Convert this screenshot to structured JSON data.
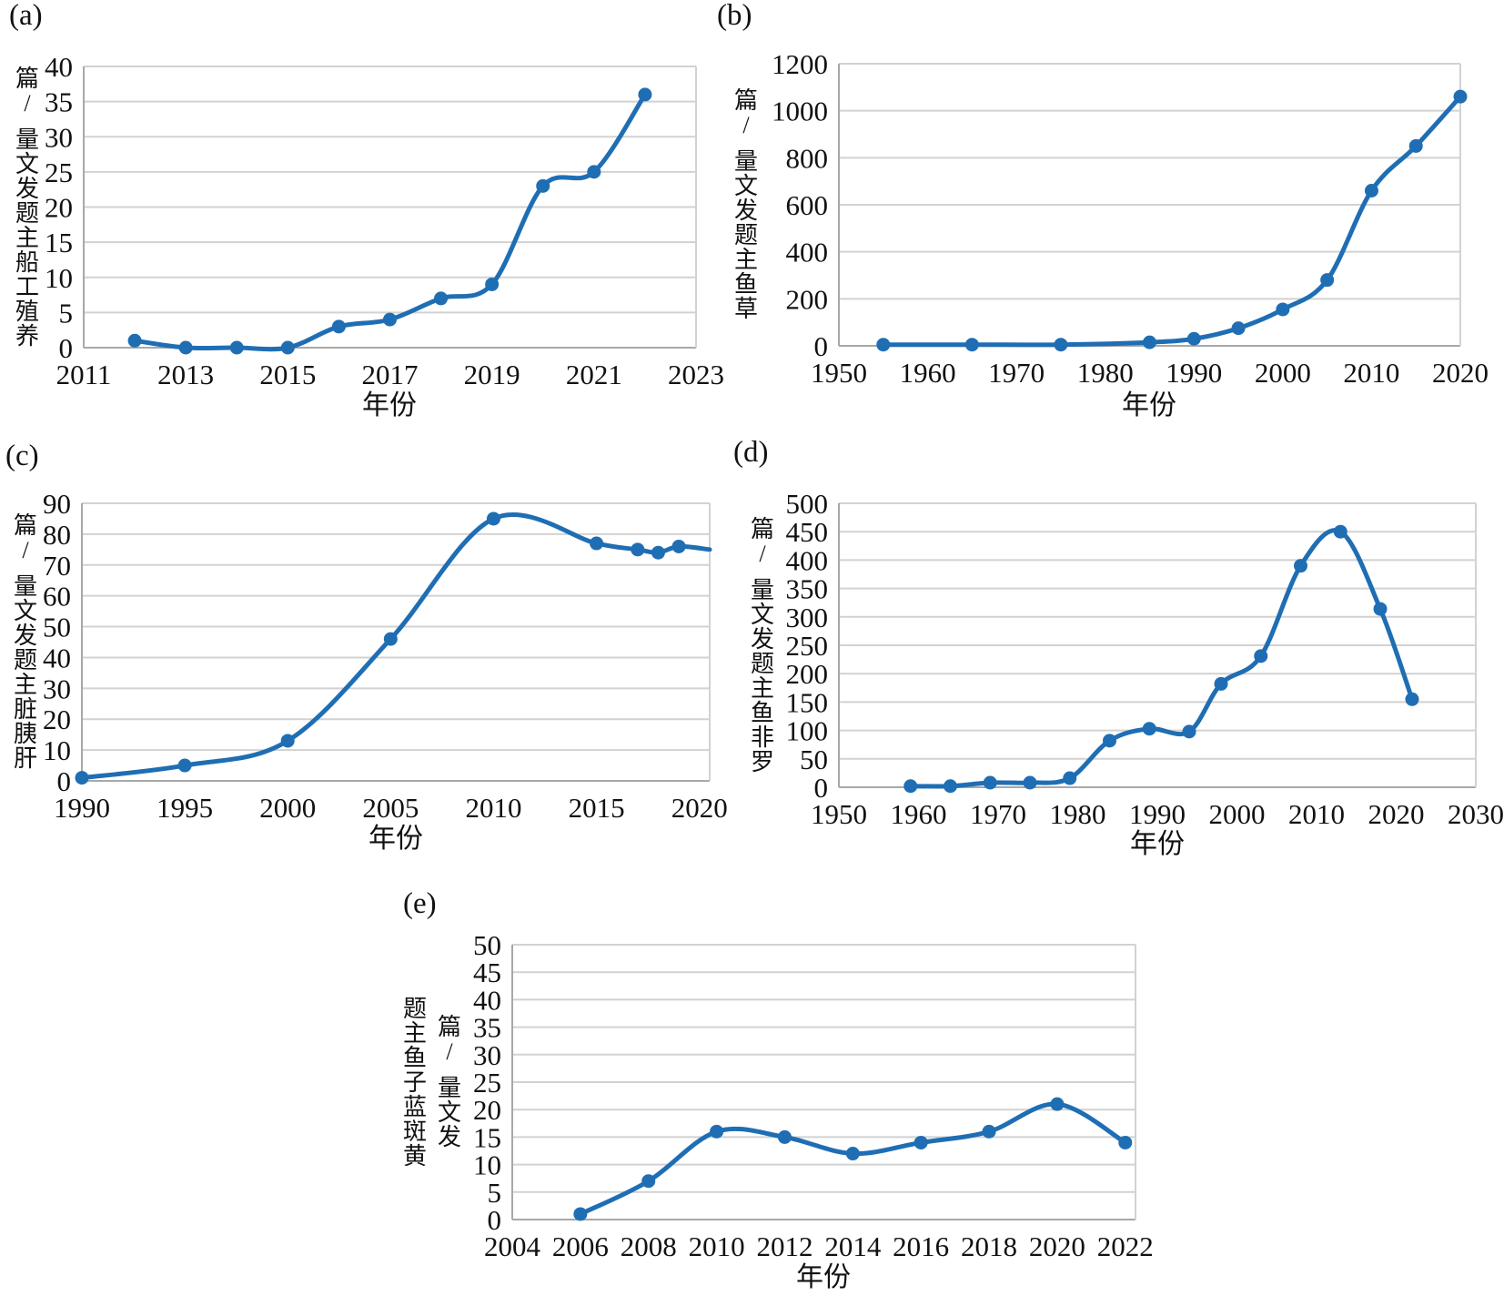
{
  "figure": {
    "xlabel": "年份",
    "colors": {
      "line": "#1f6eb4",
      "grid": "#d2d2d2",
      "axis": "#a8a8a8",
      "text": "#111111"
    }
  },
  "chart_data": [
    {
      "type": "line",
      "panel_label": "(a)",
      "title": "",
      "ylabel": "养殖工船主题发文量 /篇",
      "ylabel_lines": [
        "养殖工船主题发文量 /篇"
      ],
      "xlabel": "年份",
      "x_range": [
        2011,
        2023
      ],
      "y_range": [
        0,
        40
      ],
      "x_ticks": [
        2011,
        2013,
        2015,
        2017,
        2019,
        2021,
        2023
      ],
      "y_ticks": [
        0,
        5,
        10,
        15,
        20,
        25,
        30,
        35,
        40
      ],
      "grid": true,
      "legend": "none",
      "x": [
        2012,
        2013,
        2014,
        2015,
        2016,
        2017,
        2018,
        2019,
        2020,
        2021,
        2022
      ],
      "y": [
        1,
        0,
        0,
        0,
        3,
        4,
        7,
        9,
        23,
        25,
        36
      ]
    },
    {
      "type": "line",
      "panel_label": "(b)",
      "title": "",
      "ylabel": "草鱼主题发文量 /篇",
      "ylabel_lines": [
        "草鱼主题发文量 /篇"
      ],
      "xlabel": "年份",
      "x_range": [
        1950,
        2020
      ],
      "y_range": [
        0,
        1200
      ],
      "x_ticks": [
        1950,
        1960,
        1970,
        1980,
        1990,
        2000,
        2010,
        2020
      ],
      "y_ticks": [
        0,
        200,
        400,
        600,
        800,
        1000,
        1200
      ],
      "grid": true,
      "legend": "none",
      "x": [
        1955,
        1965,
        1975,
        1985,
        1990,
        1995,
        2000,
        2005,
        2010,
        2015,
        2020
      ],
      "y": [
        5,
        5,
        5,
        15,
        30,
        75,
        155,
        280,
        660,
        850,
        1060
      ]
    },
    {
      "type": "line",
      "panel_label": "(c)",
      "title": "",
      "ylabel": "肝胰脏主题发文量 /篇",
      "ylabel_lines": [
        "肝胰脏主题发文量 /篇"
      ],
      "xlabel": "年份",
      "x_range": [
        1990,
        2020.5
      ],
      "y_range": [
        0,
        90
      ],
      "x_ticks": [
        1990,
        1995,
        2000,
        2005,
        2010,
        2015,
        2020
      ],
      "y_ticks": [
        0,
        10,
        20,
        30,
        40,
        50,
        60,
        70,
        80,
        90
      ],
      "grid": true,
      "legend": "none",
      "x": [
        1990,
        1995,
        2000,
        2005,
        2010,
        2015,
        2017,
        2018,
        2019
      ],
      "y": [
        1,
        5,
        13,
        46,
        85,
        77,
        75,
        74,
        76
      ],
      "line_extra": [
        [
          2020.5,
          75
        ]
      ]
    },
    {
      "type": "line",
      "panel_label": "(d)",
      "title": "",
      "ylabel": "罗非鱼主题发文量 /篇",
      "ylabel_lines": [
        "罗非鱼主题发文量 /篇"
      ],
      "xlabel": "年份",
      "x_range": [
        1950,
        2030
      ],
      "y_range": [
        0,
        500
      ],
      "x_ticks": [
        1950,
        1960,
        1970,
        1980,
        1990,
        2000,
        2010,
        2020,
        2030
      ],
      "y_ticks": [
        0,
        50,
        100,
        150,
        200,
        250,
        300,
        350,
        400,
        450,
        500
      ],
      "grid": true,
      "legend": "none",
      "x": [
        1959,
        1964,
        1969,
        1974,
        1979,
        1984,
        1989,
        1994,
        1998,
        2003,
        2008,
        2013,
        2018,
        2022
      ],
      "y": [
        2,
        2,
        8,
        8,
        16,
        82,
        103,
        98,
        182,
        231,
        390,
        450,
        314,
        155
      ]
    },
    {
      "type": "line",
      "panel_label": "(e)",
      "title": "",
      "ylabel": "黄斑蓝子鱼主题 发文量 /篇",
      "ylabel_lines": [
        "黄斑蓝子鱼主题",
        "发文量 /篇"
      ],
      "xlabel": "年份",
      "x_range": [
        2004,
        2022.3
      ],
      "y_range": [
        0,
        50
      ],
      "x_ticks": [
        2004,
        2006,
        2008,
        2010,
        2012,
        2014,
        2016,
        2018,
        2020,
        2022
      ],
      "y_ticks": [
        0,
        5,
        10,
        15,
        20,
        25,
        30,
        35,
        40,
        45,
        50
      ],
      "grid": true,
      "legend": "none",
      "x": [
        2006,
        2008,
        2010,
        2012,
        2014,
        2016,
        2018,
        2020,
        2022
      ],
      "y": [
        1,
        7,
        16,
        15,
        12,
        14,
        16,
        21,
        14
      ]
    }
  ]
}
